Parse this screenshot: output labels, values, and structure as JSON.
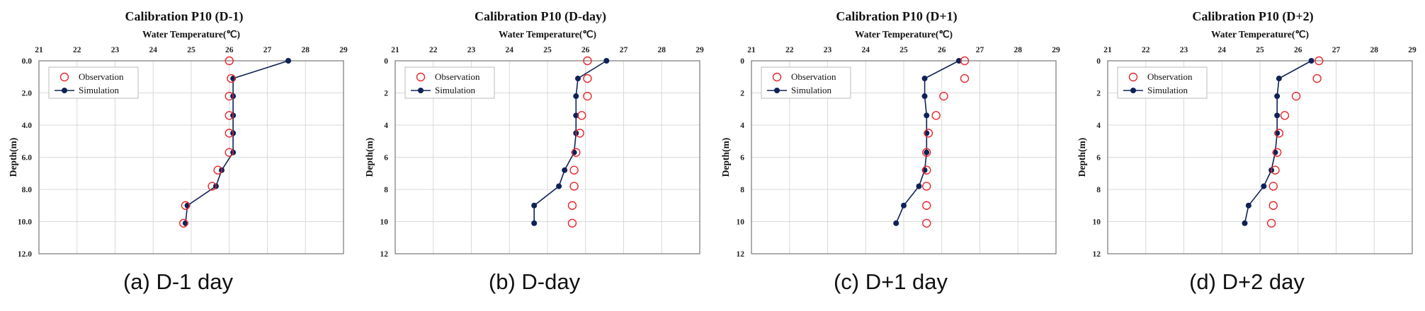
{
  "colors": {
    "observation": "#e8262b",
    "simulation": "#0f2256",
    "grid": "#d9d9d9"
  },
  "chart_data": [
    {
      "type": "scatter",
      "title": "Calibration P10 (D-1)",
      "caption": "(a) D-1 day",
      "xlabel": "Water Temperature(℃)",
      "ylabel": "Depth(m)",
      "x_ticks": [
        "21",
        "22",
        "23",
        "24",
        "25",
        "26",
        "27",
        "28",
        "29"
      ],
      "y_ticks": [
        "0.0",
        "2.0",
        "4.0",
        "6.0",
        "8.0",
        "10.0",
        "12.0"
      ],
      "xlim": [
        21,
        29
      ],
      "ylim": [
        0,
        12
      ],
      "y_inverted": true,
      "x_axis_position": "top",
      "grid": true,
      "legend_position": "top-left",
      "series": [
        {
          "name": "Observation",
          "marker": "open-circle",
          "points": [
            [
              26.0,
              0.0
            ],
            [
              26.05,
              1.1
            ],
            [
              26.0,
              2.2
            ],
            [
              26.0,
              3.4
            ],
            [
              26.0,
              4.5
            ],
            [
              26.0,
              5.7
            ],
            [
              25.7,
              6.8
            ],
            [
              25.55,
              7.8
            ],
            [
              24.85,
              9.0
            ],
            [
              24.8,
              10.1
            ]
          ]
        },
        {
          "name": "Simulation",
          "marker": "filled-circle-line",
          "points": [
            [
              27.55,
              0.0
            ],
            [
              26.1,
              1.1
            ],
            [
              26.1,
              2.2
            ],
            [
              26.1,
              3.4
            ],
            [
              26.1,
              4.5
            ],
            [
              26.1,
              5.7
            ],
            [
              25.8,
              6.8
            ],
            [
              25.65,
              7.8
            ],
            [
              24.9,
              9.0
            ],
            [
              24.85,
              10.1
            ]
          ]
        }
      ]
    },
    {
      "type": "scatter",
      "title": "Calibration P10 (D-day)",
      "caption": "(b) D-day",
      "xlabel": "Water Temperature(℃)",
      "ylabel": "Depth(m)",
      "x_ticks": [
        "21",
        "22",
        "23",
        "24",
        "25",
        "26",
        "27",
        "28",
        "29"
      ],
      "y_ticks": [
        "0",
        "2",
        "4",
        "6",
        "8",
        "10",
        "12"
      ],
      "xlim": [
        21,
        29
      ],
      "ylim": [
        0,
        12
      ],
      "y_inverted": true,
      "x_axis_position": "top",
      "grid": true,
      "legend_position": "top-left",
      "series": [
        {
          "name": "Observation",
          "marker": "open-circle",
          "points": [
            [
              26.05,
              0.0
            ],
            [
              26.05,
              1.1
            ],
            [
              26.05,
              2.2
            ],
            [
              25.9,
              3.4
            ],
            [
              25.85,
              4.5
            ],
            [
              25.75,
              5.7
            ],
            [
              25.7,
              6.8
            ],
            [
              25.7,
              7.8
            ],
            [
              25.65,
              9.0
            ],
            [
              25.65,
              10.1
            ]
          ]
        },
        {
          "name": "Simulation",
          "marker": "filled-circle-line",
          "points": [
            [
              26.55,
              0.0
            ],
            [
              25.8,
              1.1
            ],
            [
              25.75,
              2.2
            ],
            [
              25.75,
              3.4
            ],
            [
              25.75,
              4.5
            ],
            [
              25.7,
              5.7
            ],
            [
              25.45,
              6.8
            ],
            [
              25.3,
              7.8
            ],
            [
              24.65,
              9.0
            ],
            [
              24.65,
              10.1
            ]
          ]
        }
      ]
    },
    {
      "type": "scatter",
      "title": "Calibration P10 (D+1)",
      "caption": "(c) D+1 day",
      "xlabel": "Water Temperature(℃)",
      "ylabel": "Depth(m)",
      "x_ticks": [
        "21",
        "22",
        "23",
        "24",
        "25",
        "26",
        "27",
        "28",
        "29"
      ],
      "y_ticks": [
        "0",
        "2",
        "4",
        "6",
        "8",
        "10",
        "12"
      ],
      "xlim": [
        21,
        29
      ],
      "ylim": [
        0,
        12
      ],
      "y_inverted": true,
      "x_axis_position": "top",
      "grid": true,
      "legend_position": "top-left",
      "series": [
        {
          "name": "Observation",
          "marker": "open-circle",
          "points": [
            [
              26.6,
              0.0
            ],
            [
              26.6,
              1.1
            ],
            [
              26.05,
              2.2
            ],
            [
              25.85,
              3.4
            ],
            [
              25.65,
              4.5
            ],
            [
              25.6,
              5.7
            ],
            [
              25.6,
              6.8
            ],
            [
              25.6,
              7.8
            ],
            [
              25.6,
              9.0
            ],
            [
              25.6,
              10.1
            ]
          ]
        },
        {
          "name": "Simulation",
          "marker": "filled-circle-line",
          "points": [
            [
              26.45,
              0.0
            ],
            [
              25.55,
              1.1
            ],
            [
              25.55,
              2.2
            ],
            [
              25.6,
              3.4
            ],
            [
              25.6,
              4.5
            ],
            [
              25.6,
              5.7
            ],
            [
              25.55,
              6.8
            ],
            [
              25.4,
              7.8
            ],
            [
              25.0,
              9.0
            ],
            [
              24.8,
              10.1
            ]
          ]
        }
      ]
    },
    {
      "type": "scatter",
      "title": "Calibration P10 (D+2)",
      "caption": "(d) D+2 day",
      "xlabel": "Water Temperature(℃)",
      "ylabel": "Depth(m)",
      "x_ticks": [
        "21",
        "22",
        "23",
        "24",
        "25",
        "26",
        "27",
        "28",
        "29"
      ],
      "y_ticks": [
        "0",
        "2",
        "4",
        "6",
        "8",
        "10",
        "12"
      ],
      "xlim": [
        21,
        29
      ],
      "ylim": [
        0,
        12
      ],
      "y_inverted": true,
      "x_axis_position": "top",
      "grid": true,
      "legend_position": "top-left",
      "series": [
        {
          "name": "Observation",
          "marker": "open-circle",
          "points": [
            [
              26.55,
              0.0
            ],
            [
              26.5,
              1.1
            ],
            [
              25.95,
              2.2
            ],
            [
              25.65,
              3.4
            ],
            [
              25.5,
              4.5
            ],
            [
              25.45,
              5.7
            ],
            [
              25.4,
              6.8
            ],
            [
              25.35,
              7.8
            ],
            [
              25.35,
              9.0
            ],
            [
              25.3,
              10.1
            ]
          ]
        },
        {
          "name": "Simulation",
          "marker": "filled-circle-line",
          "points": [
            [
              26.35,
              0.0
            ],
            [
              25.5,
              1.1
            ],
            [
              25.45,
              2.2
            ],
            [
              25.45,
              3.4
            ],
            [
              25.45,
              4.5
            ],
            [
              25.4,
              5.7
            ],
            [
              25.3,
              6.8
            ],
            [
              25.1,
              7.8
            ],
            [
              24.7,
              9.0
            ],
            [
              24.6,
              10.1
            ]
          ]
        }
      ]
    }
  ]
}
